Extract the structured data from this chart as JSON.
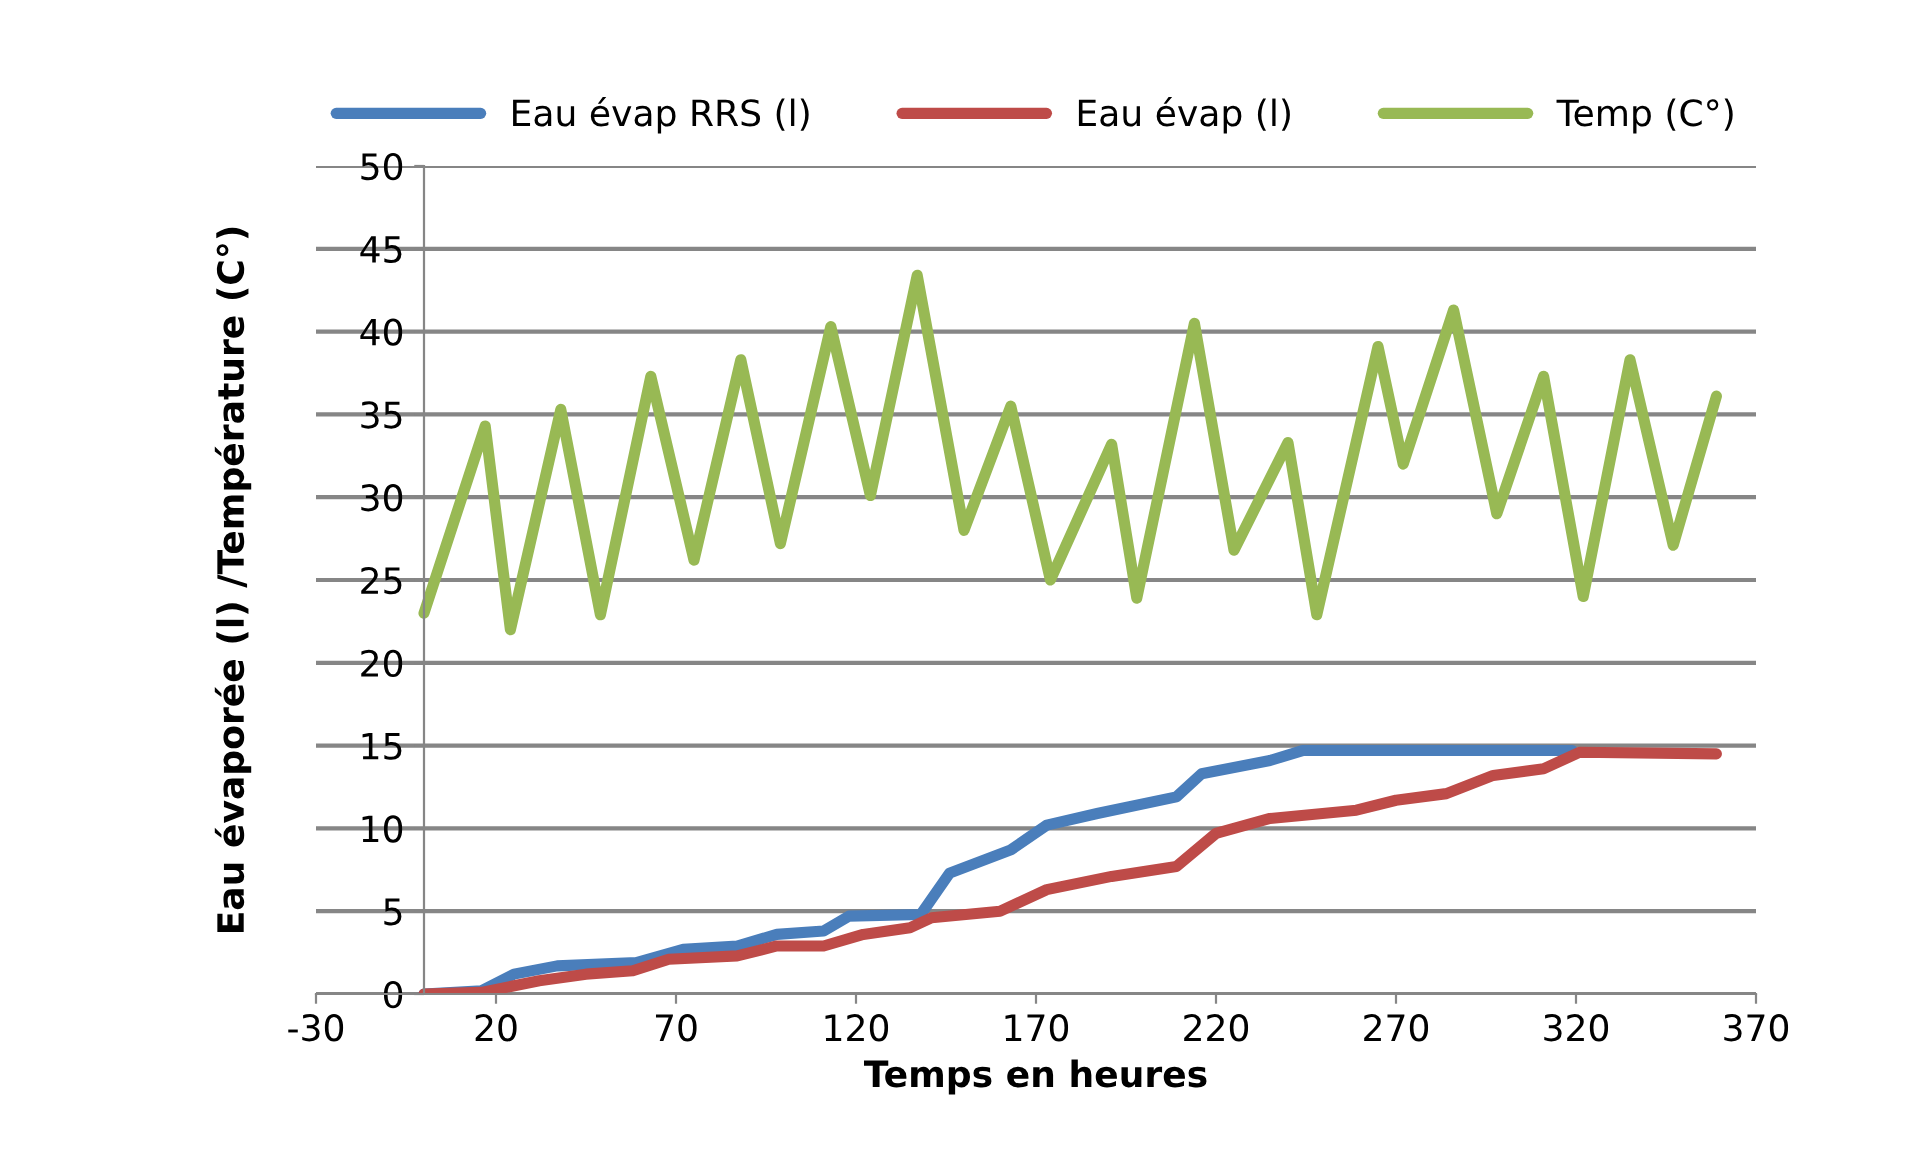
{
  "chart_data": {
    "type": "line",
    "xlabel": "Temps en heures",
    "ylabel": "Eau évaporée (l) /Température (C°)",
    "xlim": [
      -30,
      370
    ],
    "xticks": [
      -30,
      20,
      70,
      120,
      170,
      220,
      270,
      320,
      370
    ],
    "ylim": [
      0,
      50
    ],
    "yticks": [
      0,
      5,
      10,
      15,
      20,
      25,
      30,
      35,
      40,
      45,
      50
    ],
    "grid": "y",
    "legend": "top",
    "marker": "none",
    "line_style": "solid",
    "series": [
      {
        "name": "Eau évap RRS (l)",
        "color": "#4a7ebb",
        "x": [
          0,
          16,
          25,
          37,
          59,
          72,
          87,
          98,
          111,
          118,
          138,
          146,
          163,
          173,
          187,
          209,
          216,
          235,
          244,
          319
        ],
        "values": [
          0,
          0.2,
          1.2,
          1.7,
          1.9,
          2.7,
          2.9,
          3.6,
          3.8,
          4.7,
          4.8,
          7.3,
          8.7,
          10.2,
          10.9,
          11.9,
          13.3,
          14.1,
          14.7,
          14.7
        ]
      },
      {
        "name": "Eau évap (l)",
        "color": "#be4b48",
        "x": [
          0,
          16,
          32,
          45,
          58,
          68,
          87,
          98,
          111,
          122,
          135,
          141,
          160,
          173,
          191,
          209,
          220,
          235,
          259,
          270,
          284,
          297,
          311,
          321,
          359
        ],
        "values": [
          0,
          0.1,
          0.8,
          1.2,
          1.4,
          2.1,
          2.3,
          2.9,
          2.9,
          3.6,
          4.0,
          4.6,
          5.0,
          6.3,
          7.1,
          7.7,
          9.7,
          10.6,
          11.1,
          11.7,
          12.1,
          13.2,
          13.6,
          14.6,
          14.5
        ]
      },
      {
        "name": "Temp (C°)",
        "color": "#98b954",
        "x": [
          0,
          17,
          24,
          38,
          49,
          63,
          75,
          88,
          99,
          113,
          124,
          137,
          150,
          163,
          174,
          191,
          198,
          214,
          225,
          240,
          248,
          265,
          272,
          286,
          298,
          311,
          322,
          335,
          347,
          359
        ],
        "values": [
          23,
          34.3,
          22,
          35.3,
          22.9,
          37.3,
          26.2,
          38.3,
          27.2,
          40.3,
          30.1,
          43.4,
          28,
          35.5,
          25,
          33.2,
          23.9,
          40.5,
          26.8,
          33.3,
          22.9,
          39.1,
          32,
          41.3,
          29,
          37.3,
          24,
          38.3,
          27.1,
          36.1
        ]
      }
    ]
  }
}
